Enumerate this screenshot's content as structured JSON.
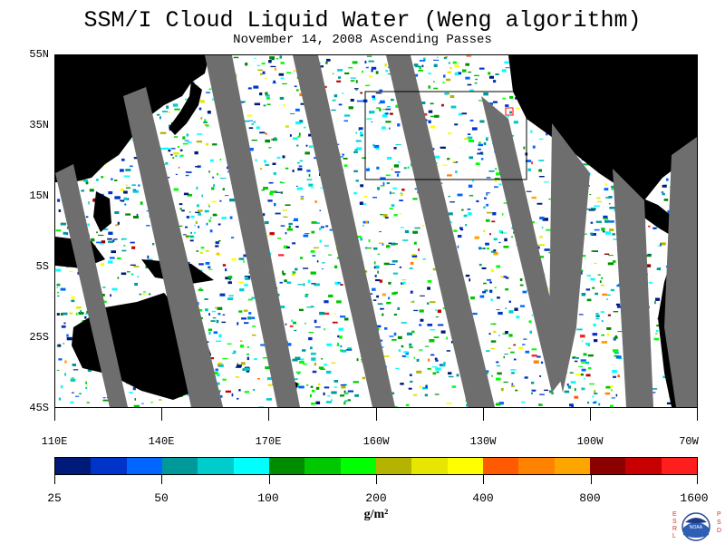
{
  "title": "SSM/I Cloud Liquid Water (Weng algorithm)",
  "subtitle": "November 14, 2008  Ascending Passes",
  "map": {
    "lat_labels": [
      "55N",
      "35N",
      "15N",
      "5S",
      "25S",
      "45S"
    ],
    "lon_labels": [
      "110E",
      "140E",
      "170E",
      "160W",
      "130W",
      "100W",
      "70W"
    ],
    "region_box_color": "#000000",
    "marker_color": "#ff0000",
    "land_color": "#000000",
    "no_data_color": "#6e6e6e"
  },
  "legend": {
    "colors": [
      "#001a7a",
      "#0033c8",
      "#0066ff",
      "#009999",
      "#00cccc",
      "#00ffff",
      "#008c00",
      "#00c800",
      "#00ff00",
      "#b4b400",
      "#e6e600",
      "#ffff00",
      "#ff5a00",
      "#ff8200",
      "#ffa500",
      "#8c0000",
      "#c80000",
      "#ff1e1e"
    ],
    "tick_labels": [
      "25",
      "50",
      "100",
      "200",
      "400",
      "800",
      "1600"
    ],
    "units": "g/m²"
  },
  "logo": {
    "left_letters": "ESRL",
    "right_letters": "PSD",
    "center_text": "NOAA"
  }
}
